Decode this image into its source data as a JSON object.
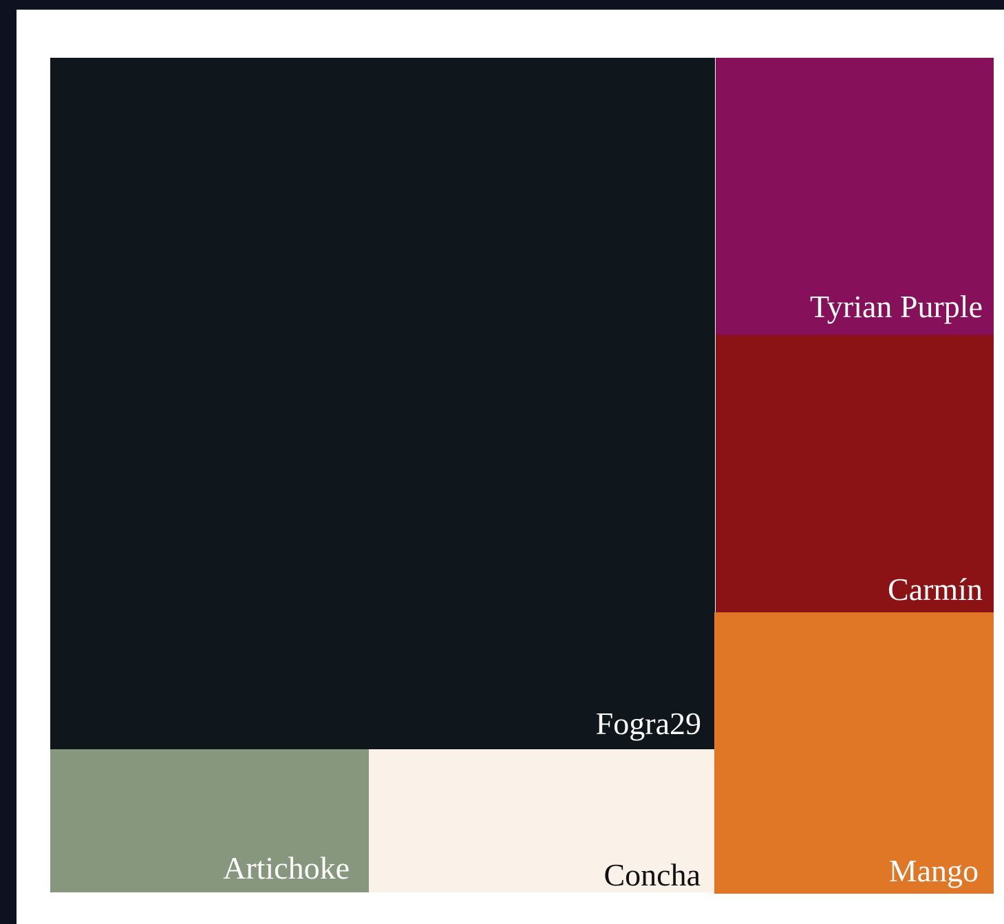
{
  "swatches": [
    {
      "id": "fogra",
      "name": "Fogra29",
      "color": "#0f161c",
      "text_color": "#ffffff"
    },
    {
      "id": "tyrian",
      "name": "Tyrian Purple",
      "color": "#86105a",
      "text_color": "#ffffff"
    },
    {
      "id": "carmin",
      "name": "Carmín",
      "color": "#8c1315",
      "text_color": "#ffffff"
    },
    {
      "id": "mango",
      "name": "Mango",
      "color": "#e07726",
      "text_color": "#ffffff"
    },
    {
      "id": "artichoke",
      "name": "Artichoke",
      "color": "#87977e",
      "text_color": "#ffffff"
    },
    {
      "id": "concha",
      "name": "Concha",
      "color": "#faf2e9",
      "text_color": "#111111"
    }
  ]
}
